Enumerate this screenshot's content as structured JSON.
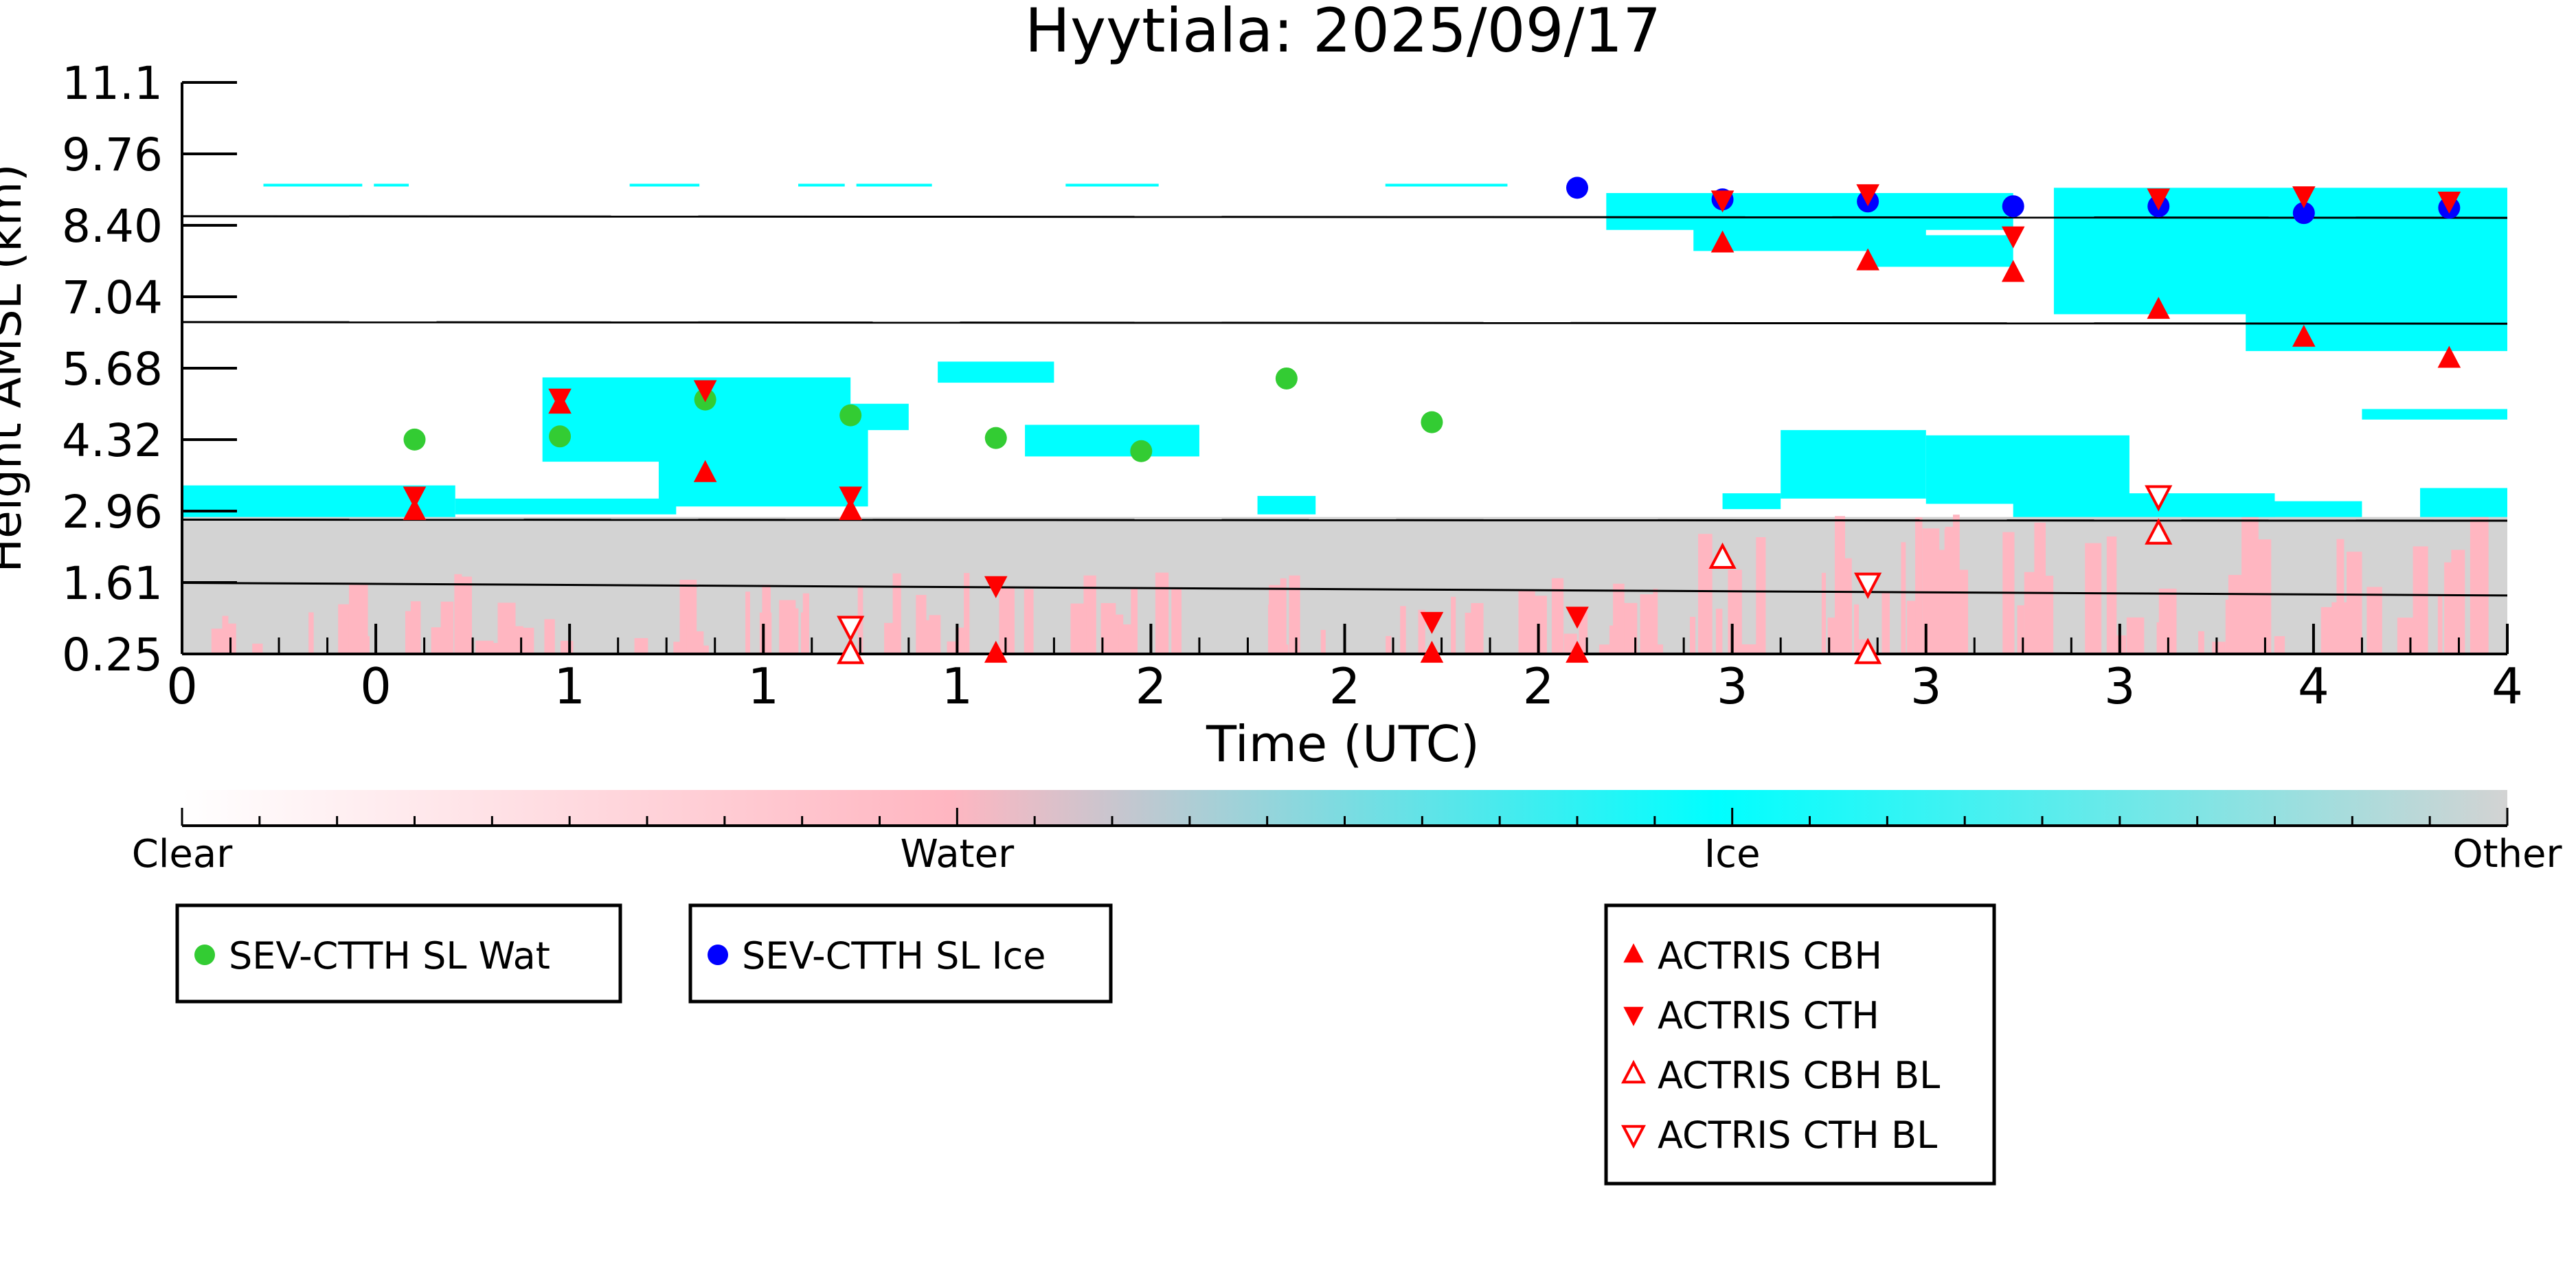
{
  "chart_data": {
    "type": "scatter",
    "title": "Hyytiala: 2025/09/17",
    "xlabel": "Time (UTC)",
    "ylabel": "Height AMSL (km)",
    "xlim": [
      0,
      4
    ],
    "ylim": [
      0.25,
      11.1
    ],
    "x_tick_labels": [
      "0",
      "0",
      "1",
      "1",
      "1",
      "2",
      "2",
      "2",
      "3",
      "3",
      "3",
      "4",
      "4"
    ],
    "y_tick_labels": [
      "0.25",
      "1.61",
      "2.96",
      "4.32",
      "5.68",
      "7.04",
      "8.40",
      "9.76",
      "11.1"
    ],
    "grid": false,
    "reference_lines": [
      {
        "y": [
          8.56,
          8.53
        ]
      },
      {
        "y": [
          6.55,
          6.52
        ]
      },
      {
        "y": [
          2.8,
          2.78
        ]
      },
      {
        "y": [
          1.6,
          1.36
        ]
      }
    ],
    "colorbar": {
      "labels": [
        "Clear",
        "Water",
        "Ice",
        "Other"
      ],
      "colors": [
        "#ffffff",
        "#ffb6c1",
        "#00ffff",
        "#d3d3d3"
      ]
    },
    "series": [
      {
        "name": "SEV-CTTH SL Wat",
        "color": "#33cc33",
        "marker": "circle",
        "points": [
          [
            0.4,
            4.32
          ],
          [
            0.65,
            4.38
          ],
          [
            0.9,
            5.08
          ],
          [
            1.15,
            4.78
          ],
          [
            1.4,
            4.35
          ],
          [
            1.65,
            4.1
          ],
          [
            1.9,
            5.48
          ],
          [
            2.15,
            4.65
          ]
        ]
      },
      {
        "name": "SEV-CTTH SL Ice",
        "color": "#0000ff",
        "marker": "circle",
        "points": [
          [
            2.4,
            9.1
          ],
          [
            2.65,
            8.88
          ],
          [
            2.9,
            8.84
          ],
          [
            3.15,
            8.75
          ],
          [
            3.4,
            8.75
          ],
          [
            3.65,
            8.62
          ],
          [
            3.9,
            8.72
          ]
        ]
      },
      {
        "name": "ACTRIS CBH",
        "color": "#ff0000",
        "marker": "triangle-up",
        "filled": true,
        "points": [
          [
            0.4,
            2.96
          ],
          [
            0.65,
            4.98
          ],
          [
            0.9,
            3.68
          ],
          [
            1.15,
            2.96
          ],
          [
            1.4,
            0.25
          ],
          [
            2.15,
            0.25
          ],
          [
            2.4,
            0.25
          ],
          [
            2.65,
            8.04
          ],
          [
            2.9,
            7.7
          ],
          [
            3.15,
            7.48
          ],
          [
            3.4,
            6.78
          ],
          [
            3.65,
            6.25
          ],
          [
            3.9,
            5.85
          ]
        ]
      },
      {
        "name": "ACTRIS CTH",
        "color": "#ff0000",
        "marker": "triangle-down",
        "filled": true,
        "points": [
          [
            0.4,
            3.26
          ],
          [
            0.65,
            5.12
          ],
          [
            0.9,
            5.28
          ],
          [
            1.15,
            3.26
          ],
          [
            1.4,
            1.56
          ],
          [
            2.15,
            0.88
          ],
          [
            2.4,
            0.98
          ],
          [
            2.65,
            8.88
          ],
          [
            2.9,
            9.0
          ],
          [
            3.15,
            8.2
          ],
          [
            3.4,
            8.92
          ],
          [
            3.65,
            8.96
          ],
          [
            3.9,
            8.86
          ]
        ]
      },
      {
        "name": "ACTRIS CBH BL",
        "color": "#ff0000",
        "marker": "triangle-up",
        "filled": false,
        "points": [
          [
            1.15,
            0.25
          ],
          [
            2.65,
            2.06
          ],
          [
            2.9,
            0.25
          ],
          [
            3.4,
            2.52
          ]
        ]
      },
      {
        "name": "ACTRIS CTH BL",
        "color": "#ff0000",
        "marker": "triangle-down",
        "filled": false,
        "points": [
          [
            1.15,
            0.78
          ],
          [
            2.9,
            1.6
          ],
          [
            3.4,
            3.26
          ]
        ]
      }
    ]
  }
}
